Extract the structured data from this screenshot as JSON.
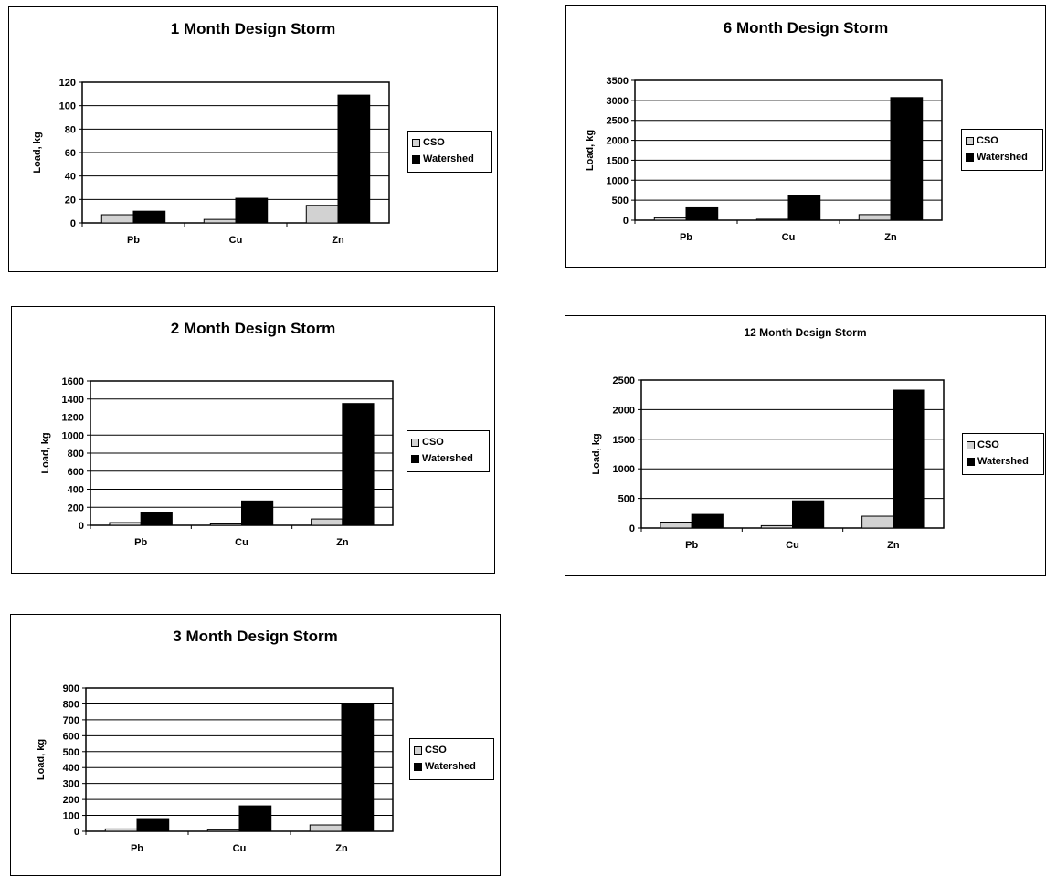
{
  "legend": {
    "series": [
      "CSO",
      "Watershed"
    ]
  },
  "colors": {
    "cso": "#d2d2d2",
    "watershed": "#000000",
    "grid": "#000000"
  },
  "chart_data": [
    {
      "type": "bar",
      "title": "1 Month Design Storm",
      "ylabel": "Load, kg",
      "categories": [
        "Pb",
        "Cu",
        "Zn"
      ],
      "ylim": [
        0,
        120
      ],
      "yticks": [
        0,
        20,
        40,
        60,
        80,
        100,
        120
      ],
      "series": [
        {
          "name": "CSO",
          "values": [
            7,
            3,
            15
          ]
        },
        {
          "name": "Watershed",
          "values": [
            10,
            21,
            109
          ]
        }
      ]
    },
    {
      "type": "bar",
      "title": "6 Month Design Storm",
      "ylabel": "Load, kg",
      "categories": [
        "Pb",
        "Cu",
        "Zn"
      ],
      "ylim": [
        0,
        3500
      ],
      "yticks": [
        0,
        500,
        1000,
        1500,
        2000,
        2500,
        3000,
        3500
      ],
      "series": [
        {
          "name": "CSO",
          "values": [
            60,
            25,
            140
          ]
        },
        {
          "name": "Watershed",
          "values": [
            310,
            620,
            3070
          ]
        }
      ]
    },
    {
      "type": "bar",
      "title": "2 Month Design Storm",
      "ylabel": "Load, kg",
      "categories": [
        "Pb",
        "Cu",
        "Zn"
      ],
      "ylim": [
        0,
        1600
      ],
      "yticks": [
        0,
        200,
        400,
        600,
        800,
        1000,
        1200,
        1400,
        1600
      ],
      "series": [
        {
          "name": "CSO",
          "values": [
            30,
            15,
            70
          ]
        },
        {
          "name": "Watershed",
          "values": [
            140,
            270,
            1350
          ]
        }
      ]
    },
    {
      "type": "bar",
      "title": "12 Month Design Storm",
      "ylabel": "Load, kg",
      "categories": [
        "Pb",
        "Cu",
        "Zn"
      ],
      "ylim": [
        0,
        2500
      ],
      "yticks": [
        0,
        500,
        1000,
        1500,
        2000,
        2500
      ],
      "series": [
        {
          "name": "CSO",
          "values": [
            100,
            40,
            200
          ]
        },
        {
          "name": "Watershed",
          "values": [
            230,
            460,
            2330
          ]
        }
      ]
    },
    {
      "type": "bar",
      "title": "3 Month Design Storm",
      "ylabel": "Load, kg",
      "categories": [
        "Pb",
        "Cu",
        "Zn"
      ],
      "ylim": [
        0,
        900
      ],
      "yticks": [
        0,
        100,
        200,
        300,
        400,
        500,
        600,
        700,
        800,
        900
      ],
      "series": [
        {
          "name": "CSO",
          "values": [
            15,
            8,
            40
          ]
        },
        {
          "name": "Watershed",
          "values": [
            80,
            160,
            800
          ]
        }
      ]
    }
  ]
}
